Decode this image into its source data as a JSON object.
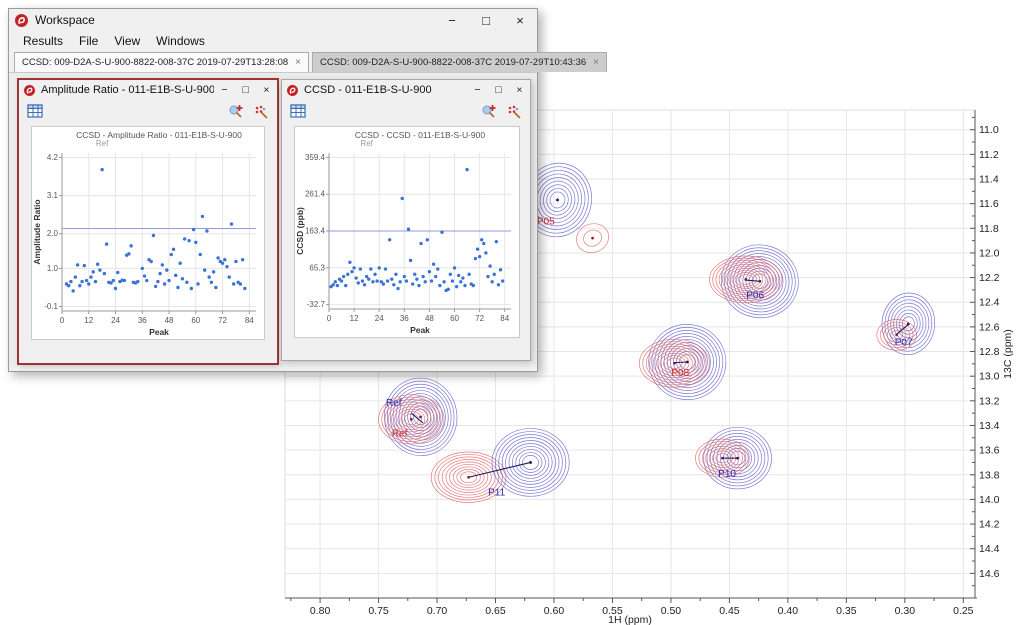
{
  "colors": {
    "logo_red": "#c42127",
    "active_window_border": "#9e3535",
    "scatter_point": "#3a72d8",
    "threshold_line": "#9398e2",
    "contour_blue": "#6363cf",
    "contour_red": "#e06464",
    "peak_label_red": "#cc2a2a",
    "peak_label_blue": "#2a2ab0",
    "grid_line": "#e6e6e6",
    "axis_line": "#555555"
  },
  "window": {
    "title": "Workspace",
    "controls": {
      "minimize": "−",
      "maximize": "□",
      "close": "×"
    }
  },
  "menu": {
    "items": [
      "Results",
      "File",
      "View",
      "Windows"
    ]
  },
  "tabs": [
    {
      "label": "CCSD: 009-D2A-S-U-900-8822-008-37C 2019-07-29T13:28:08",
      "close_glyph": "×",
      "active": true
    },
    {
      "label": "CCSD: 009-D2A-S-U-900-8822-008-37C 2019-07-29T10:43:36",
      "close_glyph": "×",
      "active": false
    }
  ],
  "panels": [
    {
      "title": "Amplitude Ratio - 011-E1B-S-U-900",
      "active": true,
      "toolbar_icons": [
        "table-icon",
        "peak-pick-icon",
        "peak-fit-icon"
      ]
    },
    {
      "title": "CCSD - 011-E1B-S-U-900",
      "active": false,
      "toolbar_icons": [
        "table-icon",
        "peak-pick-icon",
        "peak-fit-icon"
      ]
    }
  ],
  "chart_data": [
    {
      "type": "scatter",
      "title": "CCSD - Amplitude Ratio - 011-E1B-S-U-900",
      "ref_label": {
        "text": "Ref",
        "x": 18
      },
      "xlabel": "Peak",
      "ylabel": "Amplitude Ratio",
      "xticks": [
        0,
        12,
        24,
        36,
        48,
        60,
        72,
        84
      ],
      "yticks": [
        "4.2",
        "3.1",
        "2.0",
        "1.0",
        "-0.1"
      ],
      "xlim": [
        0,
        87
      ],
      "ylim": [
        -0.1,
        4.2
      ],
      "threshold": 2.15,
      "points": [
        [
          2,
          0.55
        ],
        [
          3,
          0.5
        ],
        [
          4,
          0.62
        ],
        [
          5,
          0.35
        ],
        [
          6,
          0.75
        ],
        [
          7,
          1.1
        ],
        [
          8,
          0.5
        ],
        [
          9,
          0.62
        ],
        [
          10,
          1.08
        ],
        [
          11,
          0.65
        ],
        [
          12,
          0.55
        ],
        [
          13,
          0.75
        ],
        [
          14,
          0.9
        ],
        [
          15,
          0.62
        ],
        [
          16,
          1.12
        ],
        [
          17,
          0.95
        ],
        [
          18,
          3.85
        ],
        [
          19,
          0.85
        ],
        [
          20,
          1.7
        ],
        [
          21,
          0.6
        ],
        [
          22,
          0.58
        ],
        [
          23,
          0.65
        ],
        [
          24,
          0.42
        ],
        [
          25,
          0.88
        ],
        [
          26,
          0.62
        ],
        [
          27,
          0.66
        ],
        [
          28,
          0.65
        ],
        [
          29,
          1.38
        ],
        [
          30,
          1.42
        ],
        [
          31,
          1.65
        ],
        [
          32,
          0.6
        ],
        [
          33,
          0.58
        ],
        [
          34,
          0.62
        ],
        [
          36,
          1.0
        ],
        [
          37,
          0.78
        ],
        [
          38,
          0.65
        ],
        [
          39,
          1.25
        ],
        [
          40,
          1.2
        ],
        [
          41,
          1.95
        ],
        [
          42,
          0.48
        ],
        [
          43,
          0.62
        ],
        [
          44,
          0.85
        ],
        [
          45,
          1.1
        ],
        [
          46,
          0.55
        ],
        [
          47,
          0.95
        ],
        [
          48,
          0.65
        ],
        [
          49,
          1.4
        ],
        [
          50,
          1.55
        ],
        [
          51,
          0.8
        ],
        [
          52,
          0.45
        ],
        [
          53,
          1.15
        ],
        [
          54,
          0.7
        ],
        [
          55,
          1.85
        ],
        [
          56,
          0.6
        ],
        [
          57,
          1.8
        ],
        [
          58,
          0.42
        ],
        [
          59,
          2.12
        ],
        [
          60,
          1.75
        ],
        [
          61,
          0.55
        ],
        [
          62,
          1.4
        ],
        [
          63,
          2.5
        ],
        [
          64,
          0.95
        ],
        [
          65,
          2.08
        ],
        [
          66,
          0.75
        ],
        [
          67,
          0.6
        ],
        [
          68,
          0.9
        ],
        [
          69,
          0.45
        ],
        [
          70,
          1.3
        ],
        [
          71,
          1.2
        ],
        [
          72,
          1.15
        ],
        [
          73,
          1.25
        ],
        [
          74,
          1.05
        ],
        [
          75,
          0.75
        ],
        [
          76,
          2.28
        ],
        [
          77,
          0.55
        ],
        [
          78,
          1.2
        ],
        [
          79,
          0.6
        ],
        [
          80,
          0.55
        ],
        [
          81,
          1.25
        ],
        [
          82,
          0.42
        ]
      ]
    },
    {
      "type": "scatter",
      "title": "CCSD - CCSD - 011-E1B-S-U-900",
      "ref_label": {
        "text": "Ref",
        "x": 18
      },
      "xlabel": "Peak",
      "ylabel": "CCSD (ppb)",
      "xticks": [
        0,
        12,
        24,
        36,
        48,
        60,
        72,
        84
      ],
      "yticks": [
        "359.4",
        "261.4",
        "163.4",
        "65.3",
        "-32.7"
      ],
      "xlim": [
        0,
        87
      ],
      "ylim": [
        -32.7,
        359.4
      ],
      "threshold": 163.4,
      "points": [
        [
          1,
          15
        ],
        [
          2,
          20
        ],
        [
          3,
          28
        ],
        [
          4,
          18
        ],
        [
          5,
          35
        ],
        [
          6,
          30
        ],
        [
          7,
          42
        ],
        [
          8,
          18
        ],
        [
          9,
          48
        ],
        [
          10,
          80
        ],
        [
          11,
          55
        ],
        [
          12,
          65
        ],
        [
          13,
          38
        ],
        [
          14,
          25
        ],
        [
          15,
          62
        ],
        [
          16,
          30
        ],
        [
          17,
          20
        ],
        [
          18,
          42
        ],
        [
          19,
          35
        ],
        [
          20,
          62
        ],
        [
          21,
          28
        ],
        [
          22,
          48
        ],
        [
          23,
          30
        ],
        [
          24,
          65
        ],
        [
          25,
          28
        ],
        [
          26,
          22
        ],
        [
          27,
          62
        ],
        [
          28,
          30
        ],
        [
          29,
          140
        ],
        [
          30,
          35
        ],
        [
          31,
          20
        ],
        [
          32,
          48
        ],
        [
          33,
          10
        ],
        [
          34,
          28
        ],
        [
          35,
          250
        ],
        [
          36,
          42
        ],
        [
          37,
          30
        ],
        [
          38,
          168
        ],
        [
          39,
          85
        ],
        [
          40,
          22
        ],
        [
          41,
          48
        ],
        [
          42,
          35
        ],
        [
          43,
          18
        ],
        [
          44,
          130
        ],
        [
          45,
          42
        ],
        [
          46,
          28
        ],
        [
          47,
          140
        ],
        [
          48,
          55
        ],
        [
          49,
          30
        ],
        [
          50,
          75
        ],
        [
          51,
          42
        ],
        [
          52,
          62
        ],
        [
          53,
          18
        ],
        [
          54,
          160
        ],
        [
          55,
          28
        ],
        [
          56,
          5
        ],
        [
          57,
          8
        ],
        [
          58,
          48
        ],
        [
          59,
          30
        ],
        [
          60,
          65
        ],
        [
          61,
          15
        ],
        [
          62,
          45
        ],
        [
          63,
          28
        ],
        [
          64,
          38
        ],
        [
          65,
          18
        ],
        [
          66,
          327
        ],
        [
          67,
          48
        ],
        [
          68,
          22
        ],
        [
          69,
          18
        ],
        [
          70,
          90
        ],
        [
          71,
          115
        ],
        [
          72,
          95
        ],
        [
          73,
          140
        ],
        [
          74,
          130
        ],
        [
          75,
          105
        ],
        [
          76,
          42
        ],
        [
          77,
          70
        ],
        [
          78,
          28
        ],
        [
          79,
          48
        ],
        [
          80,
          135
        ],
        [
          81,
          20
        ],
        [
          82,
          60
        ],
        [
          83,
          30
        ]
      ]
    },
    {
      "type": "contour",
      "xlabel": "1H (ppm)",
      "ylabel": "13C (ppm)",
      "xticks": [
        "0.80",
        "0.75",
        "0.70",
        "0.65",
        "0.60",
        "0.55",
        "0.50",
        "0.45",
        "0.40",
        "0.35",
        "0.30",
        "0.25"
      ],
      "yticks": [
        "11.0",
        "11.2",
        "11.4",
        "11.6",
        "11.8",
        "12.0",
        "12.2",
        "12.4",
        "12.6",
        "12.8",
        "13.0",
        "13.2",
        "13.4",
        "13.6",
        "13.8",
        "14.0",
        "14.2",
        "14.4",
        "14.6"
      ],
      "xlim": [
        0.83,
        0.24
      ],
      "ylim": [
        10.84,
        14.8
      ],
      "x_axis_reversed": true,
      "peaks": [
        {
          "id": "P05",
          "labels": [
            {
              "text": "P05",
              "color": "red",
              "at": [
                0.607,
                11.77
              ]
            }
          ],
          "contours": [
            {
              "color": "blue",
              "center": [
                0.597,
                11.57
              ],
              "rx": 0.029,
              "ry": 0.3,
              "rings": 9,
              "rot": 15
            },
            {
              "color": "red",
              "center": [
                0.567,
                11.88
              ],
              "rx": 0.014,
              "ry": 0.115,
              "rings": 2,
              "rot": -20
            }
          ],
          "connector": null
        },
        {
          "id": "P06",
          "labels": [
            {
              "text": "P06",
              "color": "blue",
              "at": [
                0.428,
                12.37
              ]
            }
          ],
          "contours": [
            {
              "color": "blue",
              "center": [
                0.424,
                12.23
              ],
              "rx": 0.033,
              "ry": 0.295,
              "rings": 11,
              "rot": 10
            },
            {
              "color": "red",
              "center": [
                0.436,
                12.215
              ],
              "rx": 0.031,
              "ry": 0.19,
              "rings": 10,
              "rot": 0
            }
          ],
          "connector": [
            [
              0.436,
              12.22
            ],
            [
              0.424,
              12.23
            ]
          ]
        },
        {
          "id": "P07",
          "labels": [
            {
              "text": "P07",
              "color": "blue",
              "at": [
                0.301,
                12.75
              ]
            }
          ],
          "contours": [
            {
              "color": "blue",
              "center": [
                0.297,
                12.575
              ],
              "rx": 0.0225,
              "ry": 0.25,
              "rings": 8,
              "rot": 5
            },
            {
              "color": "red",
              "center": [
                0.307,
                12.665
              ],
              "rx": 0.017,
              "ry": 0.125,
              "rings": 5,
              "rot": 0
            }
          ],
          "connector": [
            [
              0.307,
              12.66
            ],
            [
              0.297,
              12.58
            ]
          ]
        },
        {
          "id": "P08",
          "labels": [
            {
              "text": "P08",
              "color": "red",
              "at": [
                0.492,
                13.0
              ]
            }
          ],
          "contours": [
            {
              "color": "blue",
              "center": [
                0.486,
                12.885
              ],
              "rx": 0.033,
              "ry": 0.305,
              "rings": 11,
              "rot": 8
            },
            {
              "color": "red",
              "center": [
                0.497,
                12.895
              ],
              "rx": 0.03,
              "ry": 0.195,
              "rings": 9,
              "rot": 0
            }
          ],
          "connector": [
            [
              0.497,
              12.89
            ],
            [
              0.486,
              12.885
            ]
          ]
        },
        {
          "id": "Ref",
          "labels": [
            {
              "text": "Ref",
              "color": "blue",
              "at": [
                0.737,
                13.24
              ]
            },
            {
              "text": "Ref",
              "color": "red",
              "at": [
                0.732,
                13.49
              ]
            }
          ],
          "contours": [
            {
              "color": "blue",
              "center": [
                0.714,
                13.33
              ],
              "rx": 0.031,
              "ry": 0.315,
              "rings": 11,
              "rot": -5
            },
            {
              "color": "red",
              "center": [
                0.722,
                13.35
              ],
              "rx": 0.028,
              "ry": 0.2,
              "rings": 9,
              "rot": 0
            }
          ],
          "connector": [
            [
              0.722,
              13.3
            ],
            [
              0.712,
              13.38
            ]
          ]
        },
        {
          "id": "P11",
          "labels": [
            {
              "text": "P11",
              "color": "blue",
              "at": [
                0.649,
                13.97
              ]
            }
          ],
          "contours": [
            {
              "color": "red",
              "center": [
                0.673,
                13.82
              ],
              "rx": 0.032,
              "ry": 0.205,
              "rings": 9,
              "rot": 0
            },
            {
              "color": "blue",
              "center": [
                0.62,
                13.7
              ],
              "rx": 0.033,
              "ry": 0.275,
              "rings": 10,
              "rot": 0
            }
          ],
          "connector": [
            [
              0.673,
              13.82
            ],
            [
              0.62,
              13.7
            ]
          ]
        },
        {
          "id": "P10",
          "labels": [
            {
              "text": "P10",
              "color": "blue",
              "at": [
                0.452,
                13.82
              ]
            }
          ],
          "contours": [
            {
              "color": "blue",
              "center": [
                0.443,
                13.665
              ],
              "rx": 0.029,
              "ry": 0.25,
              "rings": 9,
              "rot": 0
            },
            {
              "color": "red",
              "center": [
                0.456,
                13.665
              ],
              "rx": 0.023,
              "ry": 0.155,
              "rings": 7,
              "rot": 0
            }
          ],
          "connector": [
            [
              0.456,
              13.665
            ],
            [
              0.443,
              13.665
            ]
          ]
        }
      ]
    }
  ]
}
